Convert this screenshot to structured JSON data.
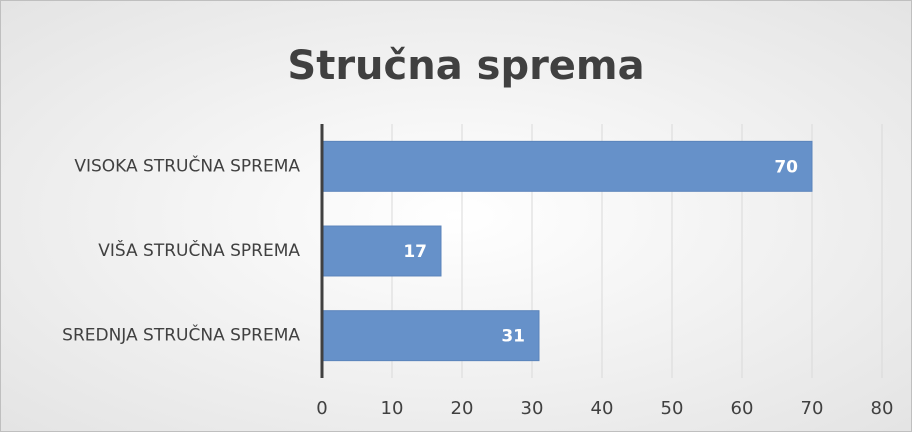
{
  "chart_data": {
    "type": "bar",
    "orientation": "horizontal",
    "title": "Stručna sprema",
    "categories": [
      "VISOKA STRUČNA SPREMA",
      "VIŠA STRUČNA SPREMA",
      "SREDNJA STRUČNA SPREMA"
    ],
    "values": [
      70,
      17,
      31
    ],
    "color": "#6691c9",
    "xlim": [
      0,
      80
    ],
    "xticks": [
      0,
      10,
      20,
      30,
      40,
      50,
      60,
      70,
      80
    ],
    "grid": true
  }
}
